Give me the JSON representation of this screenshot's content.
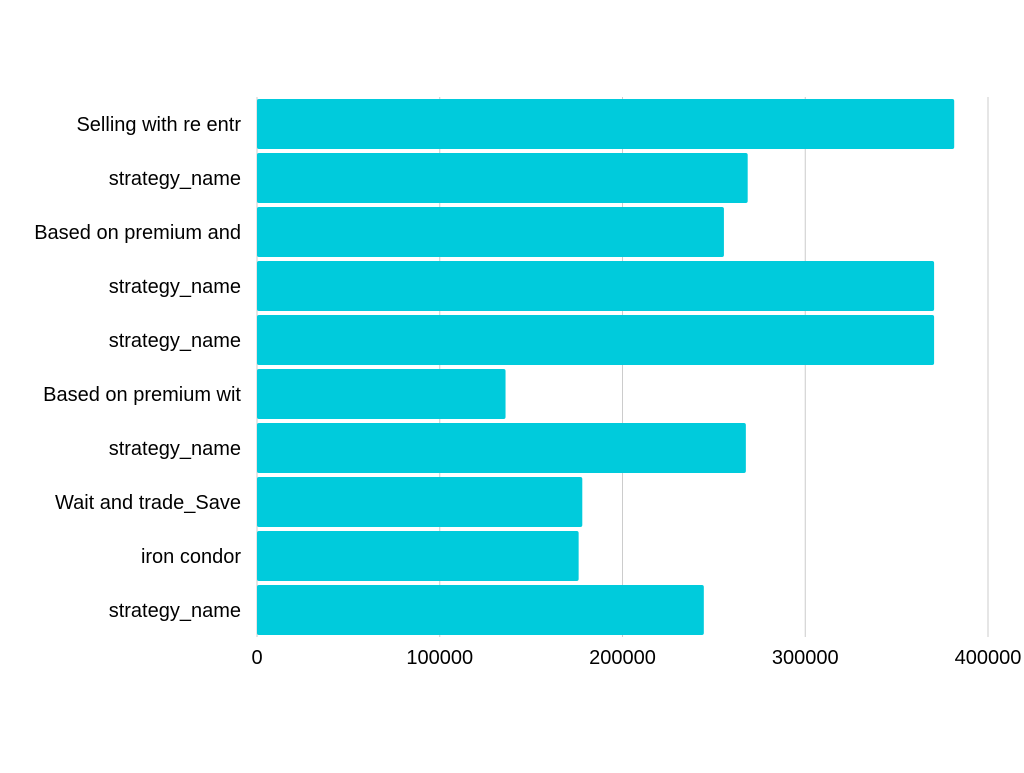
{
  "chart_data": {
    "type": "bar",
    "orientation": "horizontal",
    "title": "",
    "xlabel": "",
    "ylabel": "",
    "categories": [
      "Selling with re entr",
      "strategy_name",
      "Based on premium and",
      "strategy_name",
      "strategy_name",
      "Based on premium wit",
      "strategy_name",
      "Wait and trade_Save",
      "iron condor",
      "strategy_name"
    ],
    "values": [
      381500,
      268500,
      255500,
      370500,
      370500,
      136000,
      267500,
      178000,
      176000,
      244500
    ],
    "xlim": [
      0,
      400000
    ],
    "x_ticks": [
      "0",
      "100000",
      "200000",
      "300000",
      "400000"
    ],
    "grid": "vertical",
    "legend": "none",
    "bar_color": "#00CBDC",
    "grid_color": "#CCCCCC"
  }
}
